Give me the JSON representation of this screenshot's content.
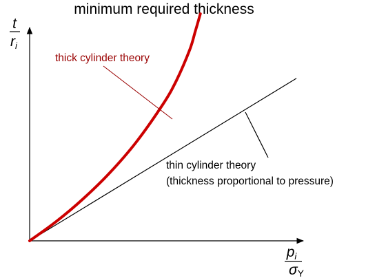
{
  "colors": {
    "thick_curve": "#cc0000",
    "thick_label": "#990000",
    "ink": "#000000",
    "background": "#ffffff"
  },
  "chart_data": {
    "type": "line",
    "title": "minimum required thickness",
    "y_axis_label": {
      "numerator": "t",
      "denominator": "r",
      "subscript": "i"
    },
    "x_axis_label": {
      "numerator": "p",
      "numerator_subscript": "i",
      "denominator": "σ",
      "denominator_subscript": "Y"
    },
    "xlim": [
      0,
      1
    ],
    "ylim": [
      0,
      1
    ],
    "ticks": "none",
    "grid": false,
    "series": [
      {
        "key": "thick",
        "x": [
          0,
          0.1,
          0.2,
          0.3,
          0.4,
          0.5,
          0.55,
          0.6,
          0.62,
          0.64
        ],
        "y": [
          0,
          0.094,
          0.203,
          0.329,
          0.479,
          0.662,
          0.776,
          0.925,
          1.01,
          1.1
        ]
      },
      {
        "key": "thin",
        "x": [
          0,
          1
        ],
        "y": [
          0,
          0.787
        ]
      }
    ],
    "annotations": [
      {
        "target": "thick",
        "lines": [
          "thick cylinder theory"
        ]
      },
      {
        "target": "thin",
        "lines": [
          "thin cylinder theory",
          "(thickness proportional to pressure)"
        ]
      }
    ]
  }
}
